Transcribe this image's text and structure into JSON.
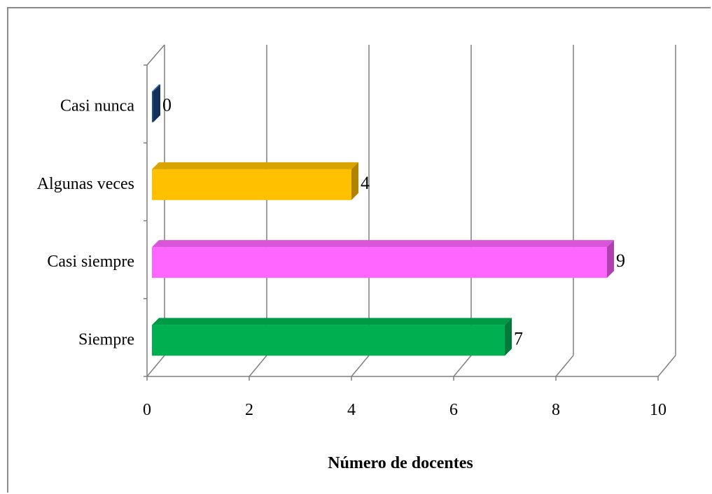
{
  "chart_data": {
    "type": "bar",
    "orientation": "horizontal",
    "style": "3d",
    "categories": [
      "Casi nunca",
      "Algunas veces",
      "Casi siempre",
      "Siempre"
    ],
    "values": [
      0,
      4,
      9,
      7
    ],
    "data_labels": [
      "0",
      "4",
      "9",
      "7"
    ],
    "colors": [
      "#1f4e8c",
      "#ffc000",
      "#ff66ff",
      "#00b050"
    ],
    "side_colors": [
      "#12305a",
      "#b08400",
      "#b040b0",
      "#007a3a"
    ],
    "top_colors": [
      "#2e6bb8",
      "#d9a300",
      "#d955d9",
      "#009945"
    ],
    "xlim": [
      0,
      10
    ],
    "xticks": [
      0,
      2,
      4,
      6,
      8,
      10
    ],
    "xtick_labels": [
      "0",
      "2",
      "4",
      "6",
      "8",
      "10"
    ],
    "xlabel": "Número de docentes",
    "ylabel": "",
    "title": "",
    "grid": true
  }
}
